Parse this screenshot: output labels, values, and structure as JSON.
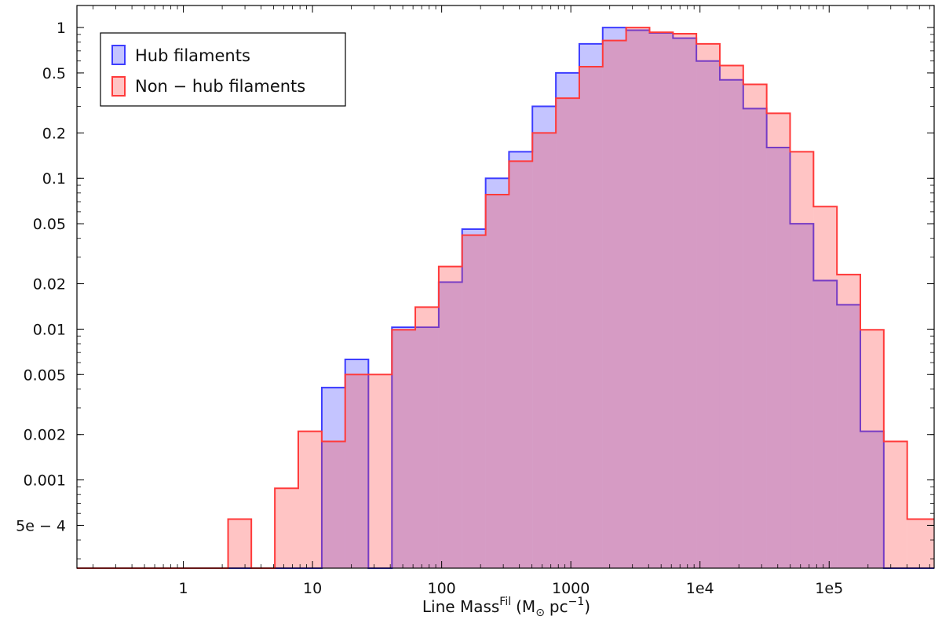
{
  "chart_data": {
    "type": "histogram",
    "title": "",
    "xlabel": "Line Mass",
    "xlabel_superscript": "Fil",
    "xlabel_units": "(M",
    "xlabel_units_sub": "⊙",
    "xlabel_units_rest": "pc",
    "xlabel_units_exp": "−1",
    "xlabel_units_close": ")",
    "ylabel": "",
    "xscale": "log",
    "yscale": "log",
    "xlim": [
      0.15,
      650000
    ],
    "ylim": [
      0.00026,
      1.4
    ],
    "grid": false,
    "legend_position": "top-left",
    "x_ticks": [
      {
        "value": 1,
        "label": "1"
      },
      {
        "value": 10,
        "label": "10"
      },
      {
        "value": 100,
        "label": "100"
      },
      {
        "value": 1000,
        "label": "1000"
      },
      {
        "value": 10000,
        "label": "1e4"
      },
      {
        "value": 100000,
        "label": "1e5"
      }
    ],
    "y_ticks": [
      {
        "value": 1,
        "label": "1"
      },
      {
        "value": 0.5,
        "label": "0.5"
      },
      {
        "value": 0.2,
        "label": "0.2"
      },
      {
        "value": 0.1,
        "label": "0.1"
      },
      {
        "value": 0.05,
        "label": "0.05"
      },
      {
        "value": 0.02,
        "label": "0.02"
      },
      {
        "value": 0.01,
        "label": "0.01"
      },
      {
        "value": 0.005,
        "label": "0.005"
      },
      {
        "value": 0.002,
        "label": "0.002"
      },
      {
        "value": 0.001,
        "label": "0.001"
      },
      {
        "value": 0.0005,
        "label": "5e − 4"
      }
    ],
    "bin_edges": [
      0.15,
      1.46,
      2.22,
      3.36,
      5.11,
      7.76,
      11.8,
      17.9,
      27.1,
      41.2,
      62.5,
      94.9,
      144,
      219,
      332,
      504,
      766,
      1163,
      1765,
      2680,
      4070,
      6180,
      9380,
      14240,
      21620,
      32830,
      49840,
      75670,
      114900,
      174400,
      264800,
      402000,
      650000
    ],
    "series": [
      {
        "name": "Hub filaments",
        "color": "#3d3dff",
        "values": [
          0,
          0,
          0,
          0,
          0,
          0,
          0.0041,
          0.0063,
          0,
          0.0103,
          0.0103,
          0.0205,
          0.046,
          0.1,
          0.15,
          0.3,
          0.5,
          0.78,
          1.0,
          0.96,
          0.92,
          0.85,
          0.6,
          0.45,
          0.29,
          0.16,
          0.05,
          0.021,
          0.0145,
          0.0021,
          0,
          0
        ]
      },
      {
        "name": "Non − hub filaments",
        "color": "#ff3a3a",
        "values": [
          0.00026,
          0,
          0.00055,
          0,
          0.00088,
          0.0021,
          0.0018,
          0.005,
          0.005,
          0.0099,
          0.014,
          0.026,
          0.042,
          0.078,
          0.13,
          0.2,
          0.34,
          0.55,
          0.82,
          1.0,
          0.93,
          0.91,
          0.78,
          0.56,
          0.42,
          0.27,
          0.15,
          0.065,
          0.023,
          0.0099,
          0.0018,
          0.00055
        ]
      }
    ]
  }
}
